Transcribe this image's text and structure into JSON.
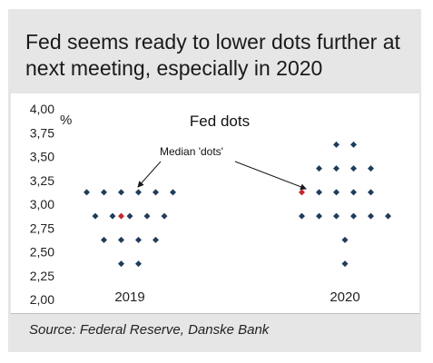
{
  "title": "Fed seems ready to lower dots further at next meeting, especially in 2020",
  "source": "Source: Federal Reserve, Danske Bank",
  "chart_data": {
    "type": "scatter",
    "title": "Fed dots",
    "ylabel": "%",
    "xlabel": "",
    "ylim": [
      2.0,
      4.0
    ],
    "yticks": [
      "4,00",
      "3,75",
      "3,50",
      "3,25",
      "3,00",
      "2,75",
      "2,50",
      "2,25",
      "2,00"
    ],
    "categories": [
      "2019",
      "2020"
    ],
    "annotation": "Median 'dots'",
    "colors": {
      "dots": "#1f3d5a",
      "median": "#c0282d"
    },
    "series": [
      {
        "category": "2019",
        "points": [
          {
            "y": 3.125,
            "count": 6
          },
          {
            "y": 2.875,
            "count": 5
          },
          {
            "y": 2.625,
            "count": 4
          },
          {
            "y": 2.375,
            "count": 2
          }
        ],
        "median": 2.875
      },
      {
        "category": "2020",
        "points": [
          {
            "y": 3.625,
            "count": 2
          },
          {
            "y": 3.375,
            "count": 4
          },
          {
            "y": 3.125,
            "count": 4
          },
          {
            "y": 2.875,
            "count": 6
          },
          {
            "y": 2.625,
            "count": 1
          },
          {
            "y": 2.375,
            "count": 1
          }
        ],
        "median": 3.125
      }
    ]
  }
}
